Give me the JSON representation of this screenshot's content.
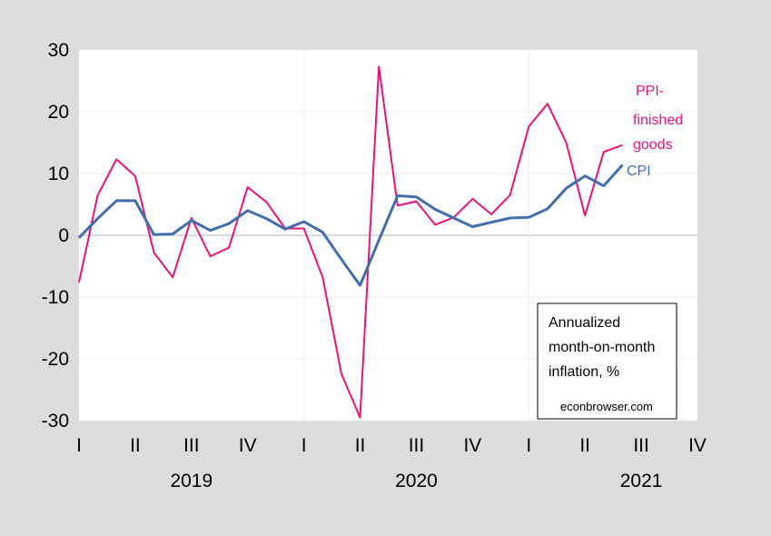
{
  "chart_data": {
    "type": "line",
    "title": "",
    "xlabel": "",
    "ylabel": "",
    "ylim": [
      -30,
      30
    ],
    "yticks": [
      30,
      20,
      10,
      0,
      -10,
      -20,
      -30
    ],
    "yticks_text": [
      "30",
      "20",
      "10",
      "0",
      "-10",
      "-20",
      "-30"
    ],
    "quarter_labels": [
      "I",
      "II",
      "III",
      "IV",
      "I",
      "II",
      "III",
      "IV",
      "I",
      "II",
      "III",
      "IV"
    ],
    "year_labels": [
      "2019",
      "2020",
      "2021"
    ],
    "grid": true,
    "x": [
      "2019-01",
      "2019-02",
      "2019-03",
      "2019-04",
      "2019-05",
      "2019-06",
      "2019-07",
      "2019-08",
      "2019-09",
      "2019-10",
      "2019-11",
      "2019-12",
      "2020-01",
      "2020-02",
      "2020-03",
      "2020-04",
      "2020-05",
      "2020-06",
      "2020-07",
      "2020-08",
      "2020-09",
      "2020-10",
      "2020-11",
      "2020-12",
      "2021-01",
      "2021-02",
      "2021-03",
      "2021-04",
      "2021-05",
      "2021-06"
    ],
    "series": [
      {
        "name": "PPI-finished goods",
        "label_lines": [
          "PPI-",
          "finished",
          "goods"
        ],
        "color": "#e8127c",
        "values": [
          -7.6,
          6.5,
          12.3,
          9.6,
          -2.8,
          -6.8,
          2.8,
          -3.4,
          -2.0,
          7.8,
          5.4,
          1.1,
          1.1,
          -6.8,
          -22.4,
          -29.5,
          27.3,
          4.8,
          5.5,
          1.7,
          2.9,
          5.9,
          3.4,
          6.5,
          17.6,
          21.3,
          15.0,
          3.2,
          13.5,
          14.6
        ]
      },
      {
        "name": "CPI",
        "label_lines": [
          "CPI"
        ],
        "color": "#3f6db0",
        "values": [
          -0.4,
          2.7,
          5.6,
          5.6,
          0.1,
          0.2,
          2.4,
          0.8,
          1.9,
          4.0,
          2.7,
          1.0,
          2.2,
          0.5,
          -3.9,
          -8.1,
          -0.8,
          6.4,
          6.2,
          4.2,
          2.8,
          1.4,
          2.1,
          2.8,
          2.9,
          4.3,
          7.6,
          9.6,
          8.0,
          11.4
        ]
      }
    ],
    "annotation": [
      "Annualized",
      "month-on-month",
      "inflation, %"
    ],
    "source": "econbrowser.com"
  }
}
